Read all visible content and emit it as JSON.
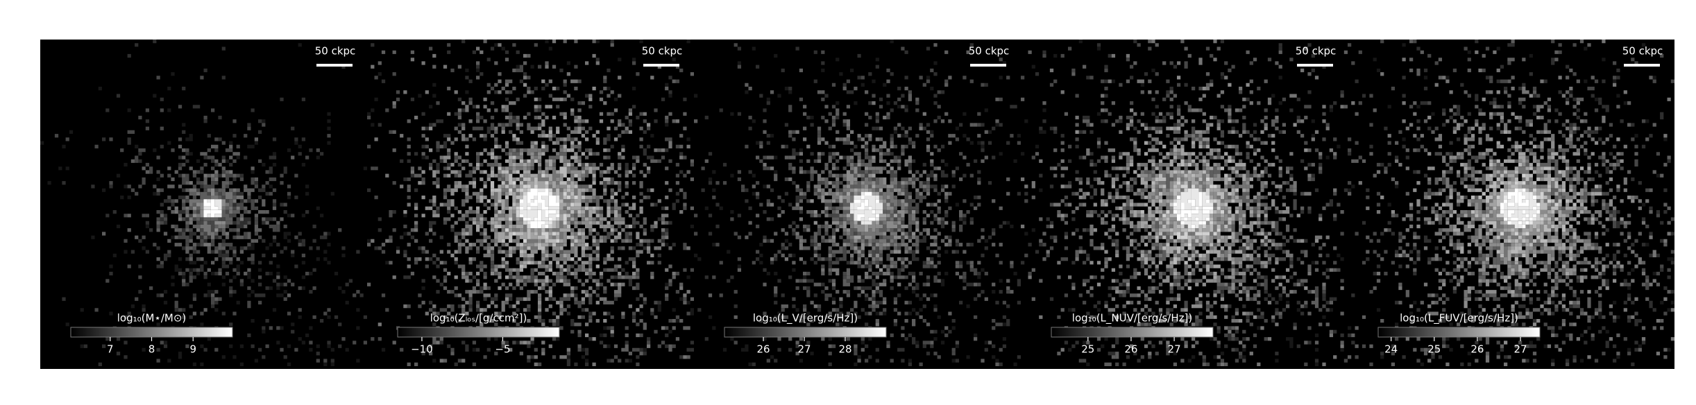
{
  "chart_data": [
    {
      "type": "image",
      "scale_bar": "50 ckpc",
      "colorbar_label": "log₁₀(M⋆/M⊙)",
      "clim": [
        6.05,
        9.95
      ],
      "cticks": [
        7,
        8,
        9
      ]
    },
    {
      "type": "image",
      "scale_bar": "50 ckpc",
      "colorbar_label": "log₁₀(Zₗₒₛ/[g/ccm²])",
      "clim": [
        -11.5,
        -1.5
      ],
      "cticks": [
        {
          "value": -10,
          "label": "−10"
        },
        {
          "value": -5,
          "label": "−5"
        }
      ]
    },
    {
      "type": "image",
      "scale_bar": "50 ckpc",
      "colorbar_label": "log₁₀(L_V/[erg/s/Hz])",
      "clim": [
        25.05,
        29
      ],
      "cticks": [
        26,
        27,
        28
      ]
    },
    {
      "type": "image",
      "scale_bar": "50 ckpc",
      "colorbar_label": "log₁₀(L_NUV/[erg/s/Hz])",
      "clim": [
        24.15,
        27.9
      ],
      "cticks": [
        25,
        26,
        27
      ]
    },
    {
      "type": "image",
      "scale_bar": "50 ckpc",
      "colorbar_label": "log₁₀(L_FUV/[erg/s/Hz])",
      "clim": [
        23.7,
        27.45
      ],
      "cticks": [
        24,
        25,
        26,
        27
      ]
    }
  ]
}
